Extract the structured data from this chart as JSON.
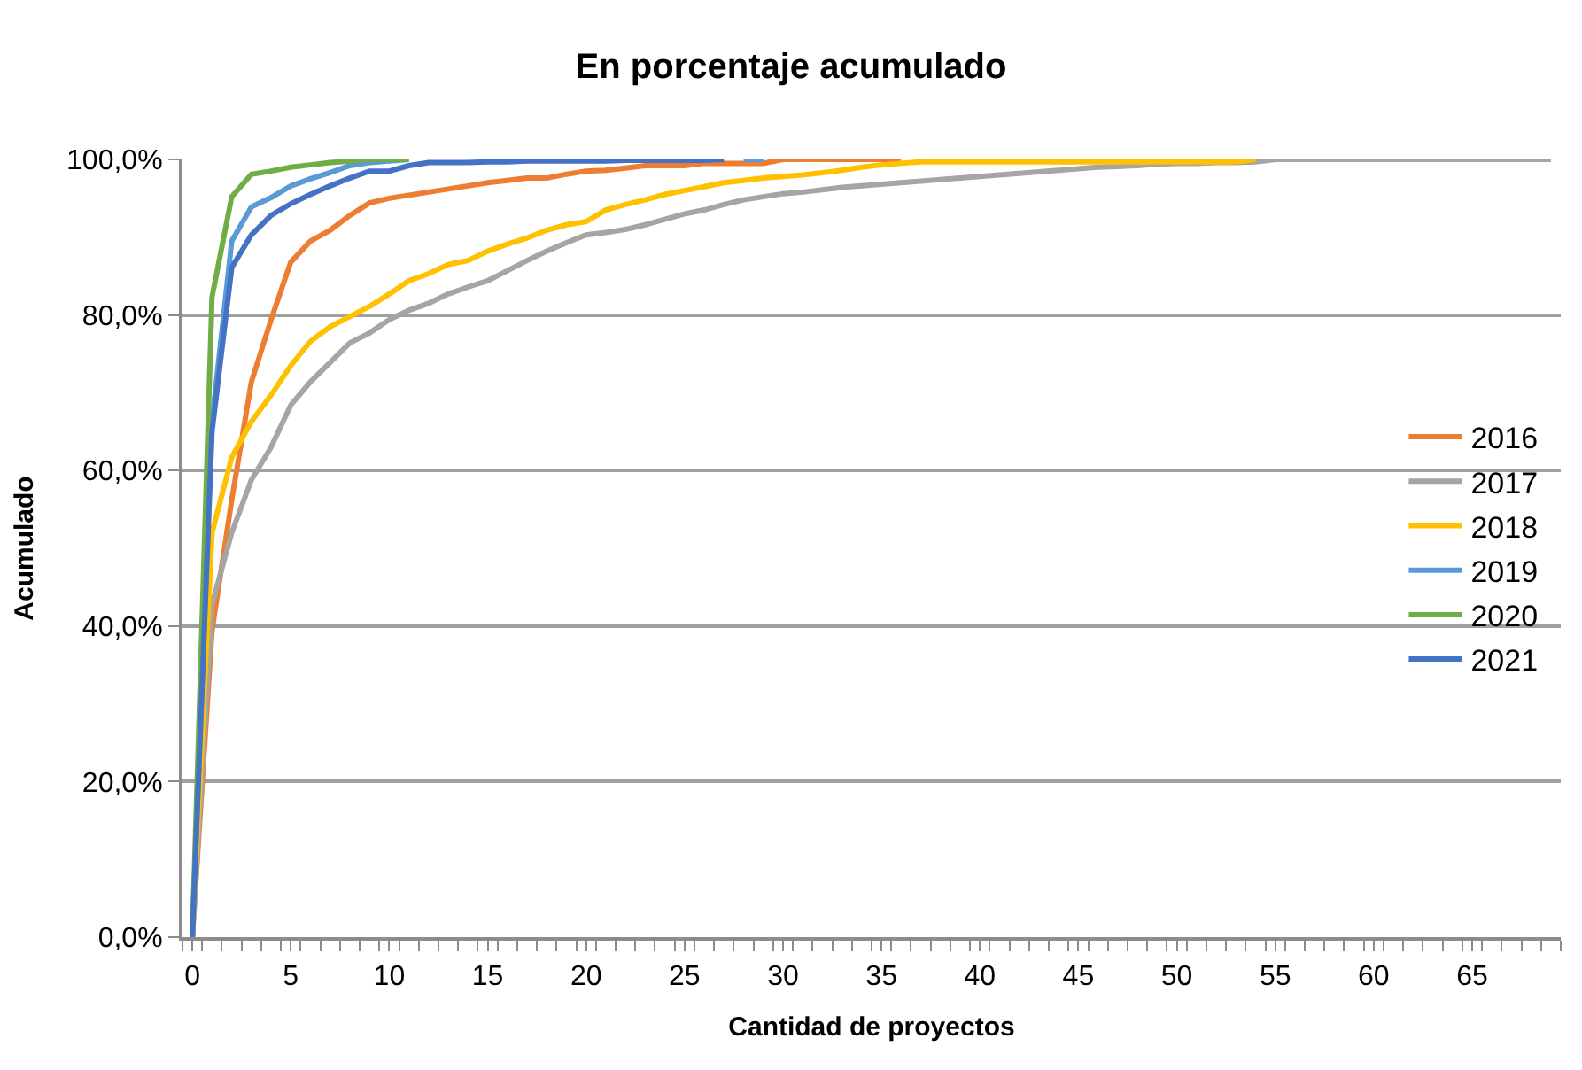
{
  "chart_data": {
    "type": "line",
    "title": "En porcentaje acumulado",
    "xlabel": "Cantidad de proyectos",
    "ylabel": "Acumulado",
    "x": [
      0,
      1,
      2,
      3,
      4,
      5,
      6,
      7,
      8,
      9,
      10,
      11,
      12,
      13,
      14,
      15,
      16,
      17,
      18,
      19,
      20,
      21,
      22,
      23,
      24,
      25,
      26,
      27,
      28,
      29,
      30,
      31,
      32,
      33,
      34,
      35,
      36,
      37,
      38,
      39,
      40,
      41,
      42,
      43,
      44,
      45,
      46,
      47,
      48,
      49,
      50,
      51,
      52,
      53,
      54,
      55,
      56,
      57,
      58,
      59,
      60,
      61,
      62,
      63,
      64,
      65,
      66,
      67,
      68,
      69
    ],
    "series": [
      {
        "name": "2016",
        "color": "#ed7d31",
        "values": [
          0,
          39.4,
          56.2,
          71.4,
          79.4,
          86.8,
          89.5,
          90.9,
          92.8,
          94.4,
          95,
          95.4,
          95.8,
          96.2,
          96.6,
          97,
          97.3,
          97.6,
          97.6,
          98.1,
          98.5,
          98.6,
          98.9,
          99.2,
          99.2,
          99.2,
          99.5,
          99.5,
          99.5,
          99.5,
          100,
          100,
          100,
          100,
          100,
          100,
          100,
          null,
          null,
          null,
          null,
          null,
          null,
          null,
          null,
          null,
          null,
          null,
          null,
          null,
          null,
          null,
          null,
          null,
          null,
          null,
          null,
          null,
          null,
          null,
          null,
          null,
          null,
          null,
          null,
          null,
          null,
          null,
          null,
          null
        ]
      },
      {
        "name": "2017",
        "color": "#a5a5a5",
        "values": [
          0,
          42.8,
          52,
          58.8,
          63,
          68.4,
          71.4,
          73.9,
          76.4,
          77.7,
          79.4,
          80.6,
          81.5,
          82.7,
          83.6,
          84.4,
          85.7,
          87,
          88.2,
          89.3,
          90.3,
          90.6,
          91,
          91.6,
          92.3,
          93,
          93.5,
          94.2,
          94.8,
          95.2,
          95.6,
          95.8,
          96.1,
          96.4,
          96.6,
          96.8,
          97,
          97.2,
          97.4,
          97.6,
          97.8,
          98,
          98.2,
          98.4,
          98.6,
          98.8,
          99,
          99.1,
          99.2,
          99.4,
          99.5,
          99.5,
          99.6,
          99.6,
          99.7,
          100,
          100,
          100,
          100,
          100,
          100,
          100,
          100,
          100,
          100,
          100,
          100,
          100,
          100,
          100
        ]
      },
      {
        "name": "2018",
        "color": "#ffc000",
        "values": [
          0,
          52,
          61.7,
          66.3,
          69.7,
          73.5,
          76.6,
          78.5,
          79.8,
          81.1,
          82.7,
          84.4,
          85.3,
          86.5,
          87,
          88.2,
          89.1,
          89.9,
          90.9,
          91.6,
          92,
          93.5,
          94.2,
          94.8,
          95.5,
          96,
          96.5,
          97,
          97.3,
          97.6,
          97.8,
          98,
          98.3,
          98.6,
          99,
          99.3,
          99.5,
          99.7,
          99.7,
          99.7,
          99.7,
          99.7,
          99.7,
          99.7,
          99.7,
          99.7,
          99.7,
          99.7,
          99.7,
          99.7,
          99.7,
          99.7,
          99.7,
          99.7,
          100,
          null,
          null,
          null,
          null,
          null,
          null,
          null,
          null,
          null,
          null,
          null,
          null,
          null,
          null,
          null
        ]
      },
      {
        "name": "2019",
        "color": "#5b9bd5",
        "values": [
          0,
          66.3,
          89.5,
          93.9,
          95.1,
          96.6,
          97.5,
          98.3,
          99.2,
          99.6,
          99.8,
          100,
          null,
          null,
          null,
          null,
          null,
          null,
          null,
          null,
          null,
          null,
          null,
          null,
          null,
          null,
          null,
          null,
          100,
          100,
          null,
          null,
          null,
          null,
          null,
          null,
          null,
          null,
          null,
          null,
          null,
          null,
          null,
          null,
          null,
          null,
          null,
          null,
          null,
          null,
          null,
          null,
          null,
          null,
          null,
          null,
          null,
          null,
          null,
          null,
          null,
          null,
          null,
          null,
          null,
          null,
          null,
          null,
          null,
          null
        ]
      },
      {
        "name": "2020",
        "color": "#70ad47",
        "values": [
          0,
          82.3,
          95.2,
          98.1,
          98.5,
          99,
          99.3,
          99.6,
          99.8,
          100,
          100,
          100,
          null,
          null,
          null,
          null,
          null,
          null,
          null,
          null,
          null,
          null,
          null,
          null,
          null,
          null,
          null,
          null,
          null,
          null,
          null,
          null,
          null,
          null,
          null,
          null,
          null,
          null,
          null,
          null,
          null,
          null,
          null,
          null,
          null,
          null,
          null,
          null,
          null,
          null,
          null,
          null,
          null,
          null,
          null,
          null,
          null,
          null,
          null,
          null,
          null,
          null,
          null,
          null,
          null,
          null,
          null,
          null,
          null,
          null
        ]
      },
      {
        "name": "2021",
        "color": "#4472c4",
        "values": [
          0,
          65,
          86.1,
          90.3,
          92.8,
          94.3,
          95.5,
          96.6,
          97.6,
          98.5,
          98.5,
          99.2,
          99.6,
          99.6,
          99.6,
          99.7,
          99.7,
          99.8,
          99.8,
          99.8,
          99.8,
          99.8,
          99.9,
          99.9,
          99.9,
          99.9,
          99.9,
          100,
          null,
          null,
          null,
          null,
          null,
          null,
          null,
          null,
          null,
          null,
          null,
          null,
          null,
          null,
          null,
          null,
          null,
          null,
          null,
          null,
          null,
          null,
          null,
          null,
          null,
          null,
          null,
          null,
          null,
          null,
          null,
          null,
          null,
          null,
          null,
          null,
          null,
          null,
          null,
          null,
          null,
          null
        ]
      }
    ],
    "xlim": [
      -0.5,
      69.5
    ],
    "xticks": [
      0,
      5,
      10,
      15,
      20,
      25,
      30,
      35,
      40,
      45,
      50,
      55,
      60,
      65
    ],
    "ylim": [
      0,
      100
    ],
    "yticks": [
      {
        "value": 0,
        "label": "0,0%"
      },
      {
        "value": 20,
        "label": "20,0%"
      },
      {
        "value": 40,
        "label": "40,0%"
      },
      {
        "value": 60,
        "label": "60,0%"
      },
      {
        "value": 80,
        "label": "80,0%"
      },
      {
        "value": 100,
        "label": "100,0%"
      }
    ],
    "grid": "y",
    "legend": "right",
    "marker": "none",
    "line_style": "solid"
  }
}
